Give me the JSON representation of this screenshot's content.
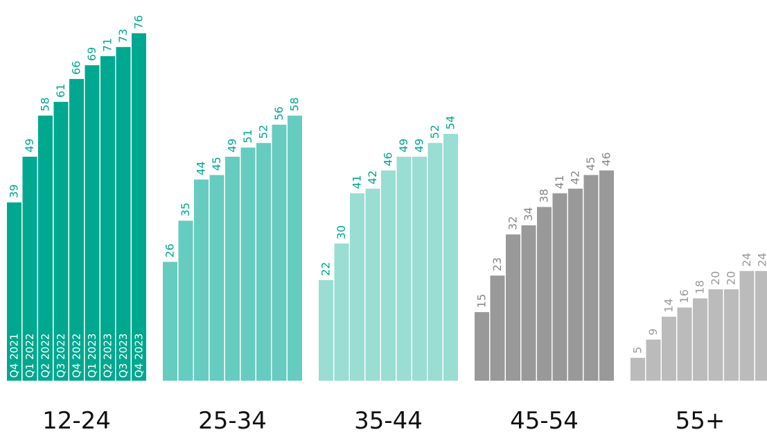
{
  "chart_data": {
    "type": "bar",
    "categories": [
      "Q4 2021",
      "Q1 2022",
      "Q2 2022",
      "Q3 2022",
      "Q4 2022",
      "Q1 2023",
      "Q2 2023",
      "Q3 2023",
      "Q4 2023"
    ],
    "groups": [
      {
        "name": "12-24",
        "values": [
          39,
          49,
          58,
          61,
          66,
          69,
          71,
          73,
          76
        ],
        "color": "#00a88f",
        "label_color": "#00a88f"
      },
      {
        "name": "25-34",
        "values": [
          26,
          35,
          44,
          45,
          49,
          51,
          52,
          56,
          58
        ],
        "color": "#66ccbf",
        "label_color": "#00a88f"
      },
      {
        "name": "35-44",
        "values": [
          22,
          30,
          41,
          42,
          46,
          49,
          49,
          52,
          54
        ],
        "color": "#99ddd3",
        "label_color": "#00a88f"
      },
      {
        "name": "45-54",
        "values": [
          15,
          23,
          32,
          34,
          38,
          41,
          42,
          45,
          46
        ],
        "color": "#999999",
        "label_color": "#888888"
      },
      {
        "name": "55+",
        "values": [
          5,
          9,
          14,
          16,
          18,
          20,
          20,
          24,
          24
        ],
        "color": "#bbbbbb",
        "label_color": "#999999"
      }
    ],
    "ylim": [
      0,
      76
    ],
    "grid": false,
    "legend": "none"
  }
}
